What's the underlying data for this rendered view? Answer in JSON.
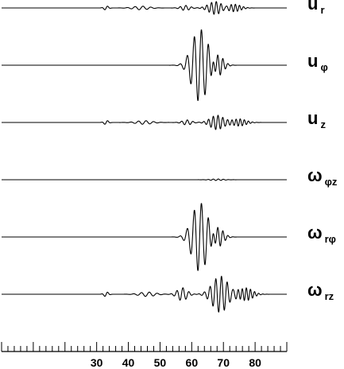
{
  "chart_data": {
    "type": "line",
    "x_axis": {
      "range": [
        0,
        90
      ],
      "major_ticks": [
        30,
        40,
        50,
        60,
        70,
        80
      ],
      "tick_labels": [
        "30",
        "40",
        "50",
        "60",
        "70",
        "80"
      ],
      "minor_tick_step": 2,
      "grid": false
    },
    "series": [
      {
        "name": "u r",
        "symbol": "u",
        "subscript": "r",
        "packets": [
          {
            "center": 67.5,
            "width": 3.0,
            "amp": 0.18,
            "period": 1.5,
            "phase": 0.5
          },
          {
            "center": 73.5,
            "width": 2.8,
            "amp": 0.1,
            "period": 1.3,
            "phase": 0.2
          },
          {
            "center": 44.0,
            "width": 3.5,
            "amp": 0.05,
            "period": 2.5,
            "phase": 0.0
          },
          {
            "center": 58.0,
            "width": 2.0,
            "amp": 0.07,
            "period": 1.8,
            "phase": 1.0
          },
          {
            "center": 33.0,
            "width": 1.0,
            "amp": 0.06,
            "period": 2.0,
            "phase": 0.0
          }
        ]
      },
      {
        "name": "u φ",
        "symbol": "u",
        "subscript": "φ",
        "packets": [
          {
            "center": 62.5,
            "width": 3.4,
            "amp": 1.0,
            "period": 2.25,
            "phase": 0.0
          },
          {
            "center": 68.0,
            "width": 2.5,
            "amp": 0.3,
            "period": 1.6,
            "phase": 0.6
          }
        ]
      },
      {
        "name": "u z",
        "symbol": "u",
        "subscript": "z",
        "packets": [
          {
            "center": 68.0,
            "width": 3.0,
            "amp": 0.2,
            "period": 1.5,
            "phase": 0.3
          },
          {
            "center": 75.0,
            "width": 3.0,
            "amp": 0.1,
            "period": 1.3,
            "phase": 0.1
          },
          {
            "center": 45.0,
            "width": 3.5,
            "amp": 0.05,
            "period": 2.4,
            "phase": 0.0
          },
          {
            "center": 58.5,
            "width": 2.0,
            "amp": 0.07,
            "period": 1.8,
            "phase": 1.2
          },
          {
            "center": 33.0,
            "width": 1.0,
            "amp": 0.06,
            "period": 2.0,
            "phase": 0.0
          }
        ]
      },
      {
        "name": "ω φz",
        "symbol": "ω",
        "subscript": "φz",
        "packets": [
          {
            "center": 68.0,
            "width": 3.0,
            "amp": 0.02,
            "period": 1.6,
            "phase": 0.0
          }
        ]
      },
      {
        "name": "ω rφ",
        "symbol": "ω",
        "subscript": "rφ",
        "packets": [
          {
            "center": 62.5,
            "width": 3.3,
            "amp": 0.95,
            "period": 2.25,
            "phase": 0.0
          },
          {
            "center": 68.0,
            "width": 2.5,
            "amp": 0.28,
            "period": 1.6,
            "phase": 0.6
          }
        ]
      },
      {
        "name": "ω rz",
        "symbol": "ω",
        "subscript": "rz",
        "packets": [
          {
            "center": 69.0,
            "width": 3.5,
            "amp": 0.5,
            "period": 1.8,
            "phase": 0.2
          },
          {
            "center": 77.0,
            "width": 3.0,
            "amp": 0.18,
            "period": 1.3,
            "phase": 0.4
          },
          {
            "center": 57.0,
            "width": 2.2,
            "amp": 0.18,
            "period": 1.9,
            "phase": 0.8
          },
          {
            "center": 46.0,
            "width": 3.5,
            "amp": 0.06,
            "period": 2.5,
            "phase": 0.0
          },
          {
            "center": 33.0,
            "width": 1.0,
            "amp": 0.07,
            "period": 2.0,
            "phase": 0.0
          }
        ]
      }
    ]
  }
}
